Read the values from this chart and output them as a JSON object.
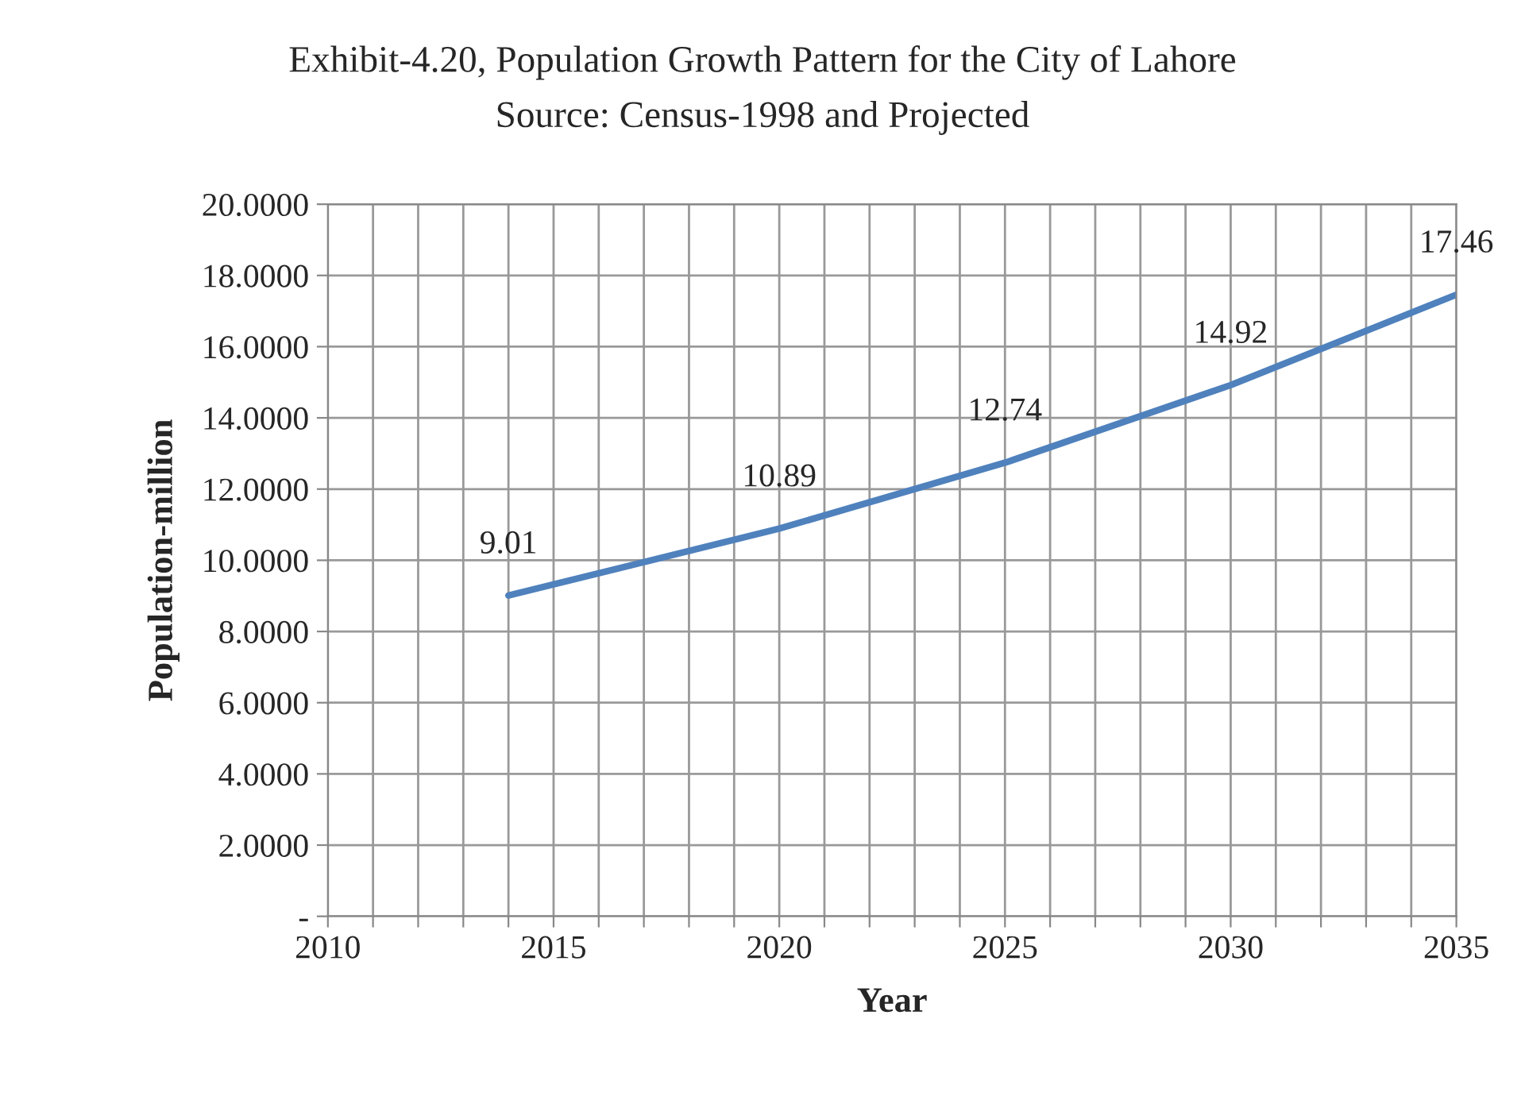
{
  "chart_data": {
    "type": "line",
    "title": "Exhibit-4.20, Population Growth Pattern for the City of Lahore",
    "subtitle": "Source: Census-1998 and Projected",
    "xlabel": "Year",
    "ylabel": "Population-million",
    "x": [
      2014,
      2020,
      2025,
      2030,
      2035
    ],
    "series": [
      {
        "color": "#4f81bd",
        "values": [
          9.01,
          10.89,
          12.74,
          14.92,
          17.46
        ]
      }
    ],
    "data_labels": true,
    "xlim": [
      2010,
      2035
    ],
    "xticks": [
      2010,
      {
        "value": 2011,
        "label": null
      },
      {
        "value": 2012,
        "label": null
      },
      {
        "value": 2013,
        "label": null
      },
      {
        "value": 2014,
        "label": null
      },
      2015,
      {
        "value": 2016,
        "label": null
      },
      {
        "value": 2017,
        "label": null
      },
      {
        "value": 2018,
        "label": null
      },
      {
        "value": 2019,
        "label": null
      },
      2020,
      {
        "value": 2021,
        "label": null
      },
      {
        "value": 2022,
        "label": null
      },
      {
        "value": 2023,
        "label": null
      },
      {
        "value": 2024,
        "label": null
      },
      2025,
      {
        "value": 2026,
        "label": null
      },
      {
        "value": 2027,
        "label": null
      },
      {
        "value": 2028,
        "label": null
      },
      {
        "value": 2029,
        "label": null
      },
      2030,
      {
        "value": 2031,
        "label": null
      },
      {
        "value": 2032,
        "label": null
      },
      {
        "value": 2033,
        "label": null
      },
      {
        "value": 2034,
        "label": null
      },
      2035
    ],
    "ylim": [
      0,
      20
    ],
    "yticks": [
      {
        "value": 0,
        "label": "-"
      },
      {
        "value": 2,
        "label": "2.0000"
      },
      {
        "value": 4,
        "label": "4.0000"
      },
      {
        "value": 6,
        "label": "6.0000"
      },
      {
        "value": 8,
        "label": "8.0000"
      },
      {
        "value": 10,
        "label": "10.0000"
      },
      {
        "value": 12,
        "label": "12.0000"
      },
      {
        "value": 14,
        "label": "14.0000"
      },
      {
        "value": 16,
        "label": "16.0000"
      },
      {
        "value": 18,
        "label": "18.0000"
      },
      {
        "value": 20,
        "label": "20.0000"
      }
    ],
    "grid": true,
    "legend": false,
    "marker": "none",
    "line_style": "solid"
  }
}
